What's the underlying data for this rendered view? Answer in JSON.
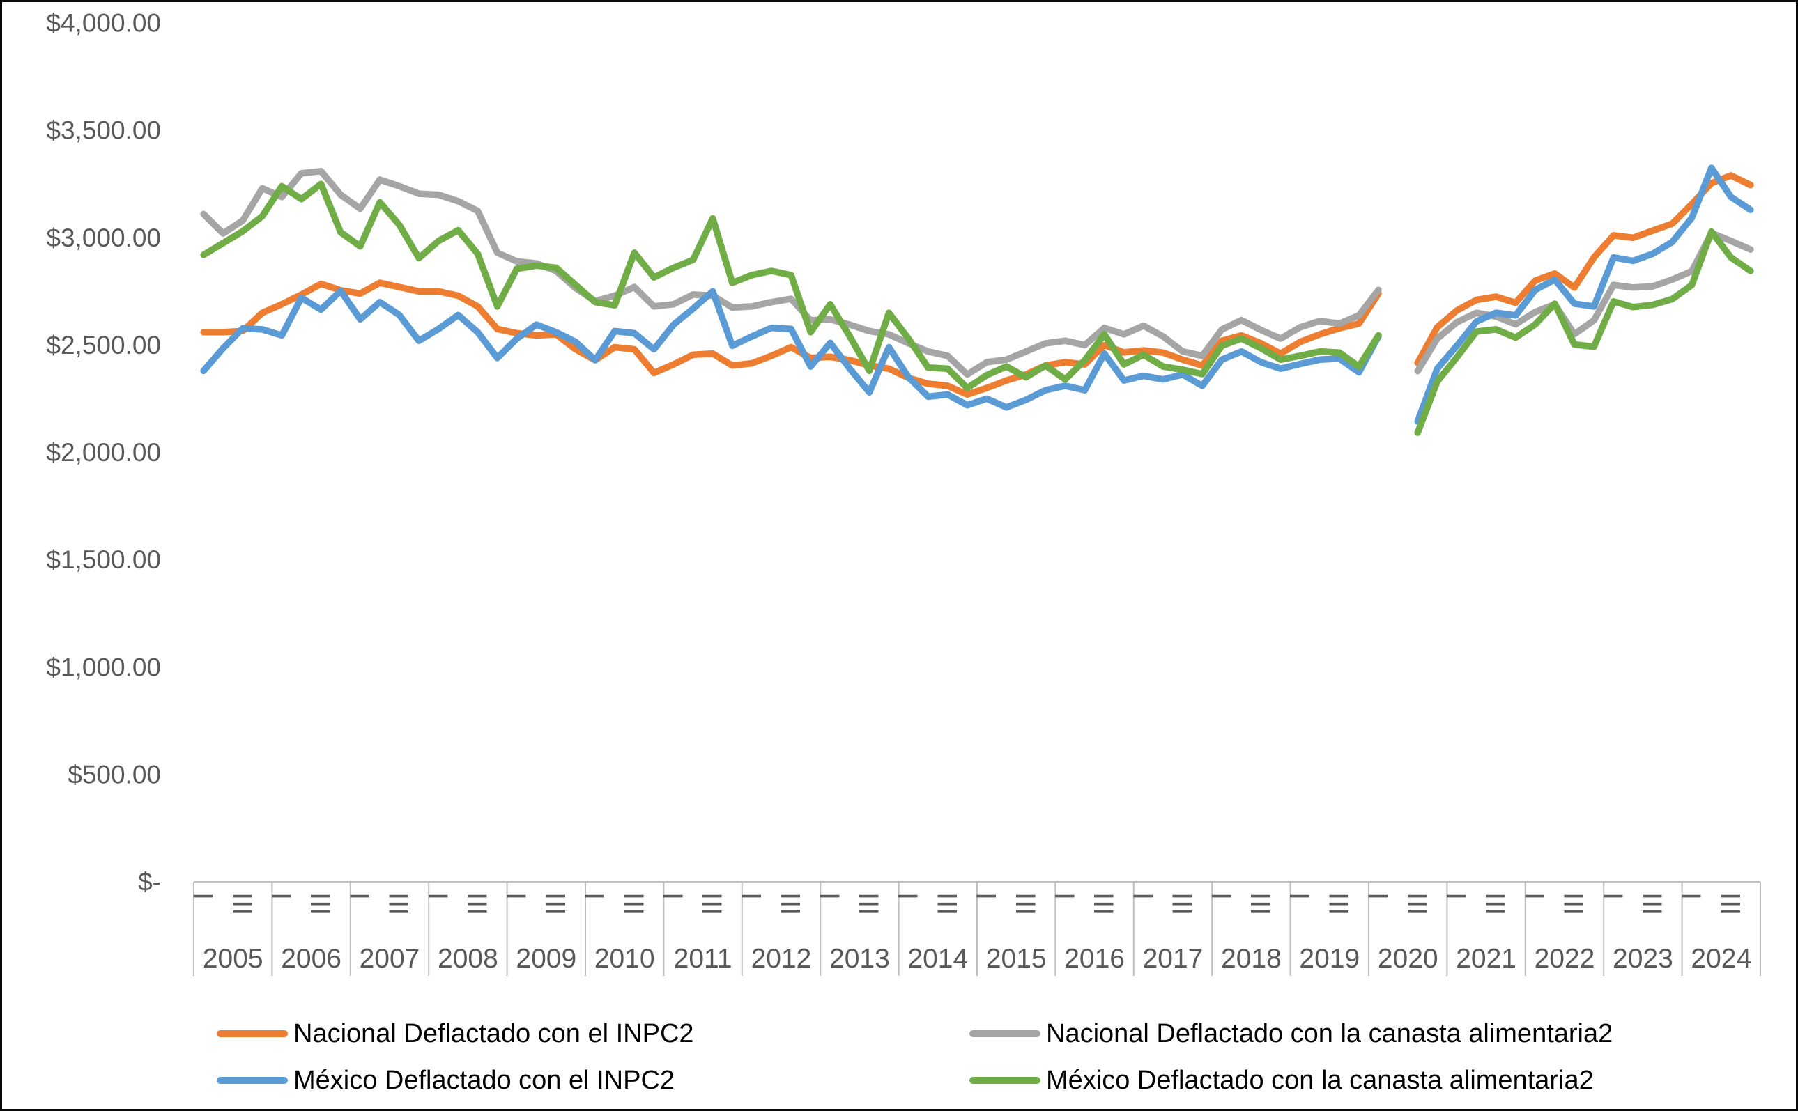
{
  "figure": {
    "background": "#FFFFFF",
    "border_color": "#0a0a0a",
    "axis_line_color": "#BFBFBF",
    "axis_text_color": "#595959",
    "legend_text_color": "#000000"
  },
  "chart_data": {
    "type": "line",
    "title": "",
    "xlabel": "",
    "ylabel": "",
    "ylim": [
      0,
      4000
    ],
    "y_tick_step": 500,
    "grid": false,
    "legend_position": "bottom",
    "y_axis_tick_labels": [
      "$4,000.00",
      "$3,500.00",
      "$3,000.00",
      "$2,500.00",
      "$2,000.00",
      "$1,500.00",
      "$1,000.00",
      "$500.00",
      "$-"
    ],
    "y_axis_tick_values": [
      4000,
      3500,
      3000,
      2500,
      2000,
      1500,
      1000,
      500,
      0
    ],
    "years": [
      "2005",
      "2006",
      "2007",
      "2008",
      "2009",
      "2010",
      "2011",
      "2012",
      "2013",
      "2014",
      "2015",
      "2016",
      "2017",
      "2018",
      "2019",
      "2020",
      "2021",
      "2022",
      "2023",
      "2024"
    ],
    "quarters_per_year": 4,
    "quarter_tick_labels_shown_per_year": [
      "I",
      "",
      "III",
      ""
    ],
    "note_gap": "2020 quarter II has no data (gap in all series)",
    "series": [
      {
        "name": "Nacional Deflactado con el INPC2",
        "color": "#ED7D31",
        "values": [
          2560,
          2560,
          2565,
          2650,
          2690,
          2735,
          2785,
          2755,
          2740,
          2790,
          2770,
          2750,
          2750,
          2730,
          2680,
          2575,
          2555,
          2545,
          2550,
          2480,
          2430,
          2490,
          2480,
          2370,
          2410,
          2455,
          2460,
          2405,
          2415,
          2450,
          2490,
          2440,
          2445,
          2430,
          2405,
          2390,
          2347,
          2320,
          2310,
          2270,
          2300,
          2335,
          2363,
          2405,
          2420,
          2410,
          2500,
          2466,
          2475,
          2465,
          2432,
          2405,
          2520,
          2545,
          2508,
          2460,
          2515,
          2550,
          2578,
          2600,
          2740,
          null,
          2417,
          2583,
          2661,
          2710,
          2725,
          2697,
          2800,
          2833,
          2768,
          2908,
          3011,
          3000,
          3033,
          3065,
          3157,
          3254,
          3290,
          3245
        ]
      },
      {
        "name": "Nacional Deflactado con la canasta alimentaria2",
        "color": "#A5A5A5",
        "values": [
          3110,
          3020,
          3080,
          3230,
          3190,
          3300,
          3310,
          3200,
          3135,
          3270,
          3240,
          3205,
          3200,
          3170,
          3125,
          2930,
          2890,
          2880,
          2845,
          2765,
          2705,
          2730,
          2770,
          2680,
          2690,
          2735,
          2730,
          2675,
          2680,
          2700,
          2715,
          2615,
          2620,
          2595,
          2565,
          2550,
          2508,
          2470,
          2450,
          2363,
          2420,
          2432,
          2470,
          2508,
          2520,
          2500,
          2580,
          2550,
          2590,
          2540,
          2470,
          2450,
          2573,
          2616,
          2570,
          2530,
          2583,
          2612,
          2600,
          2638,
          2757,
          null,
          2379,
          2530,
          2606,
          2650,
          2633,
          2597,
          2654,
          2690,
          2551,
          2615,
          2780,
          2768,
          2773,
          2805,
          2844,
          3022,
          2985,
          2945
        ]
      },
      {
        "name": "México Deflactado con el INPC2",
        "color": "#5B9BD5",
        "values": [
          2380,
          2485,
          2578,
          2573,
          2545,
          2720,
          2665,
          2753,
          2620,
          2700,
          2640,
          2520,
          2575,
          2640,
          2560,
          2440,
          2530,
          2595,
          2560,
          2515,
          2430,
          2565,
          2555,
          2480,
          2595,
          2670,
          2750,
          2497,
          2540,
          2580,
          2575,
          2400,
          2510,
          2390,
          2280,
          2490,
          2350,
          2260,
          2270,
          2220,
          2250,
          2210,
          2245,
          2290,
          2310,
          2290,
          2460,
          2335,
          2357,
          2340,
          2363,
          2310,
          2432,
          2470,
          2420,
          2390,
          2412,
          2432,
          2437,
          2373,
          2540,
          null,
          2145,
          2390,
          2497,
          2610,
          2650,
          2638,
          2757,
          2805,
          2693,
          2680,
          2908,
          2892,
          2925,
          2980,
          3093,
          3325,
          3190,
          3130
        ]
      },
      {
        "name": "México Deflactado con la canasta alimentaria2",
        "color": "#70AD47",
        "values": [
          2920,
          2975,
          3030,
          3100,
          3240,
          3180,
          3250,
          3025,
          2960,
          3165,
          3060,
          2905,
          2985,
          3035,
          2925,
          2680,
          2855,
          2870,
          2860,
          2780,
          2700,
          2685,
          2930,
          2815,
          2860,
          2897,
          3090,
          2790,
          2826,
          2845,
          2826,
          2560,
          2690,
          2540,
          2380,
          2650,
          2530,
          2395,
          2390,
          2300,
          2360,
          2400,
          2350,
          2405,
          2340,
          2430,
          2550,
          2410,
          2455,
          2400,
          2385,
          2365,
          2497,
          2530,
          2485,
          2432,
          2450,
          2470,
          2465,
          2400,
          2545,
          null,
          2092,
          2330,
          2443,
          2563,
          2573,
          2535,
          2596,
          2693,
          2503,
          2492,
          2703,
          2677,
          2687,
          2714,
          2780,
          3028,
          2908,
          2845
        ]
      }
    ]
  },
  "legend": {
    "rows": 2,
    "columns": 2,
    "order_of_series_indices": [
      0,
      1,
      2,
      3
    ]
  }
}
